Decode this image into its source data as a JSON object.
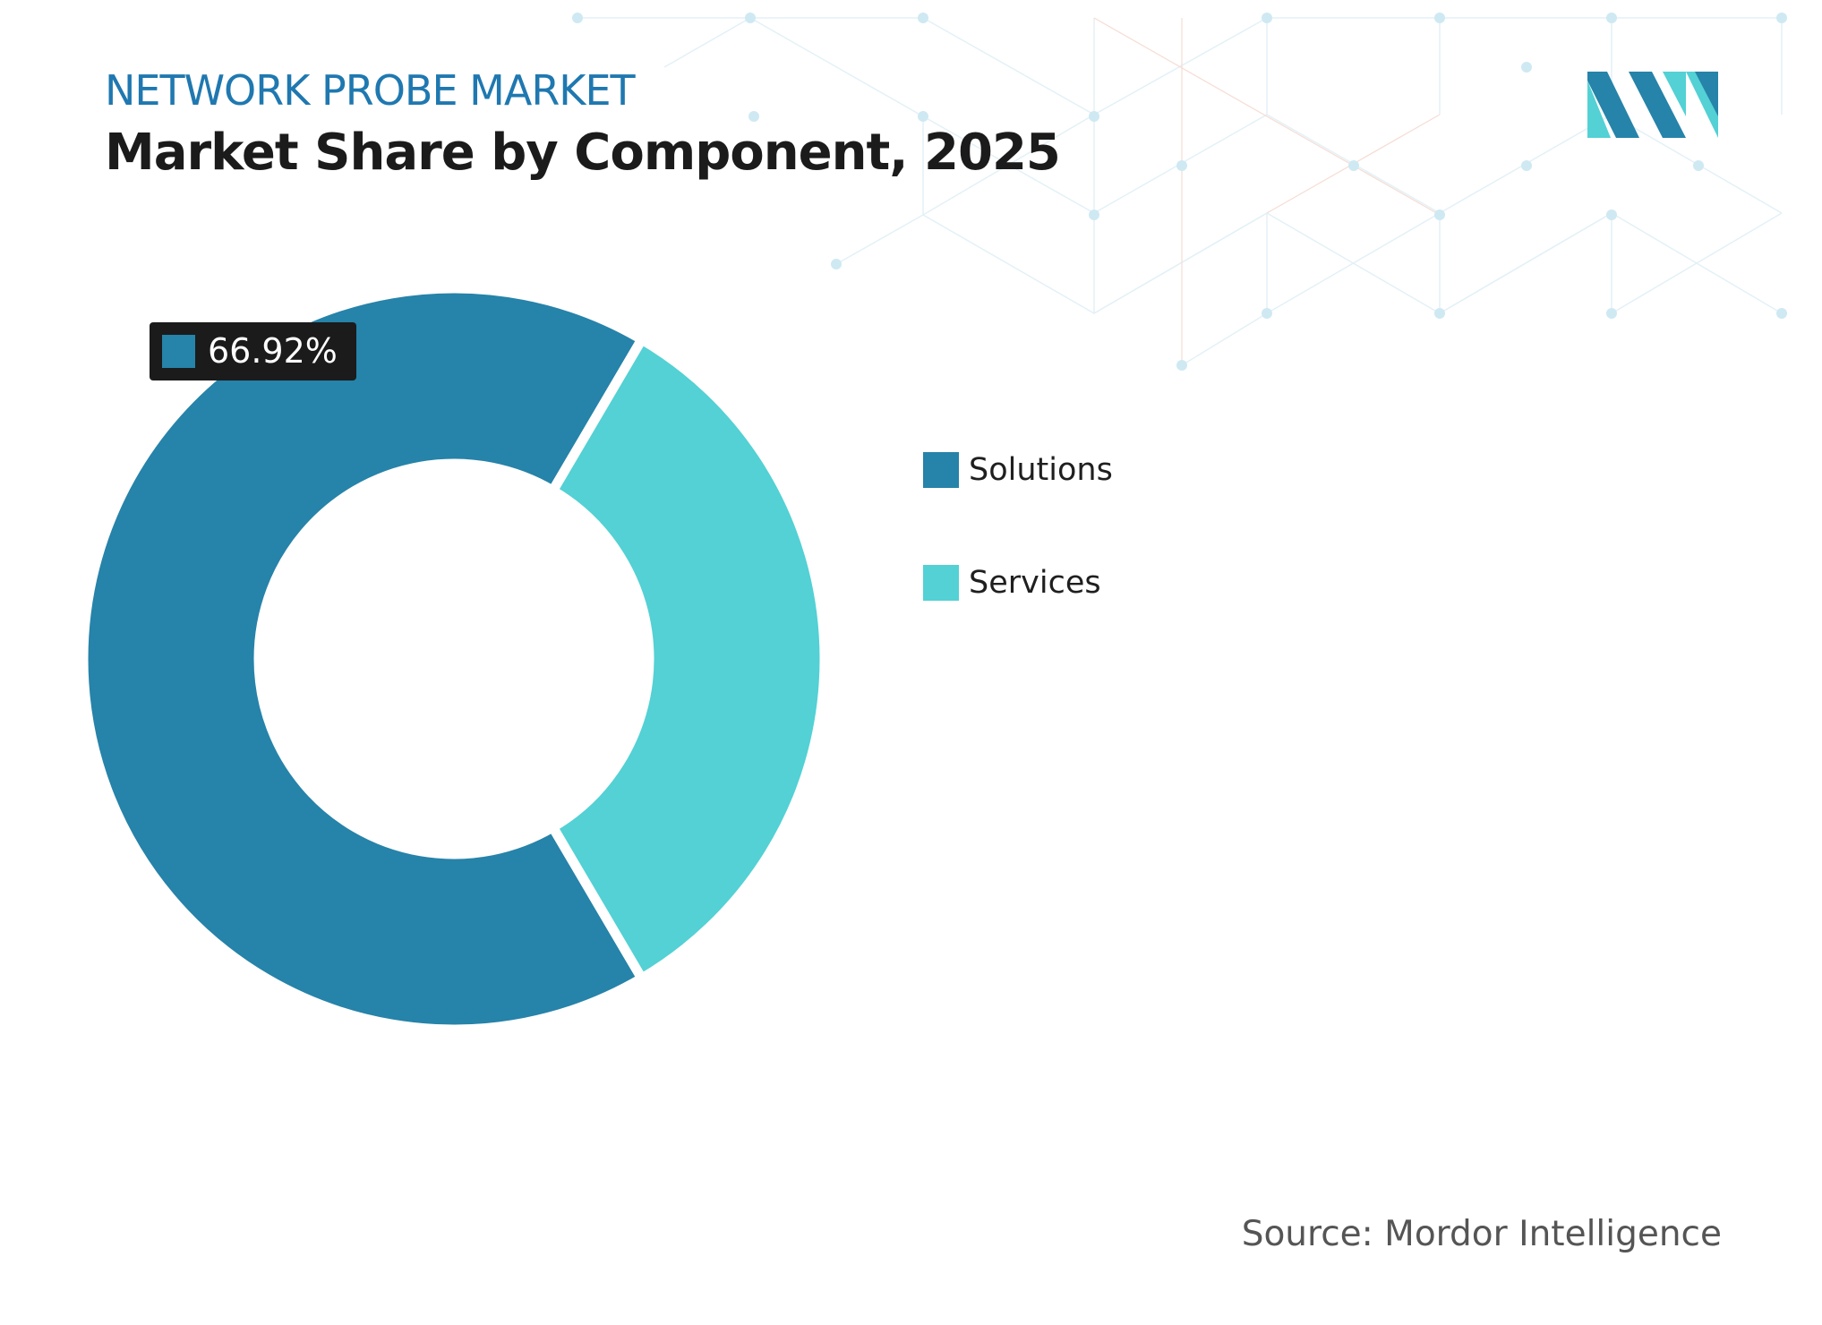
{
  "header": {
    "eyebrow": "NETWORK PROBE MARKET",
    "title": "Market Share by Component, 2025"
  },
  "colors": {
    "brand": "#1f78b0",
    "solutions": "#2683a9",
    "services": "#53d1d4",
    "label_bg": "#1b1b1b",
    "pattern": "#cfe9f3"
  },
  "chart_data": {
    "type": "pie",
    "variant": "donut",
    "categories": [
      "Solutions",
      "Services"
    ],
    "values": [
      66.92,
      33.08
    ],
    "data_labels": [
      "66.92%"
    ],
    "legend_position": "right",
    "title": "",
    "xlabel": "",
    "ylabel": ""
  },
  "footer": {
    "source": "Source: Mordor Intelligence"
  }
}
